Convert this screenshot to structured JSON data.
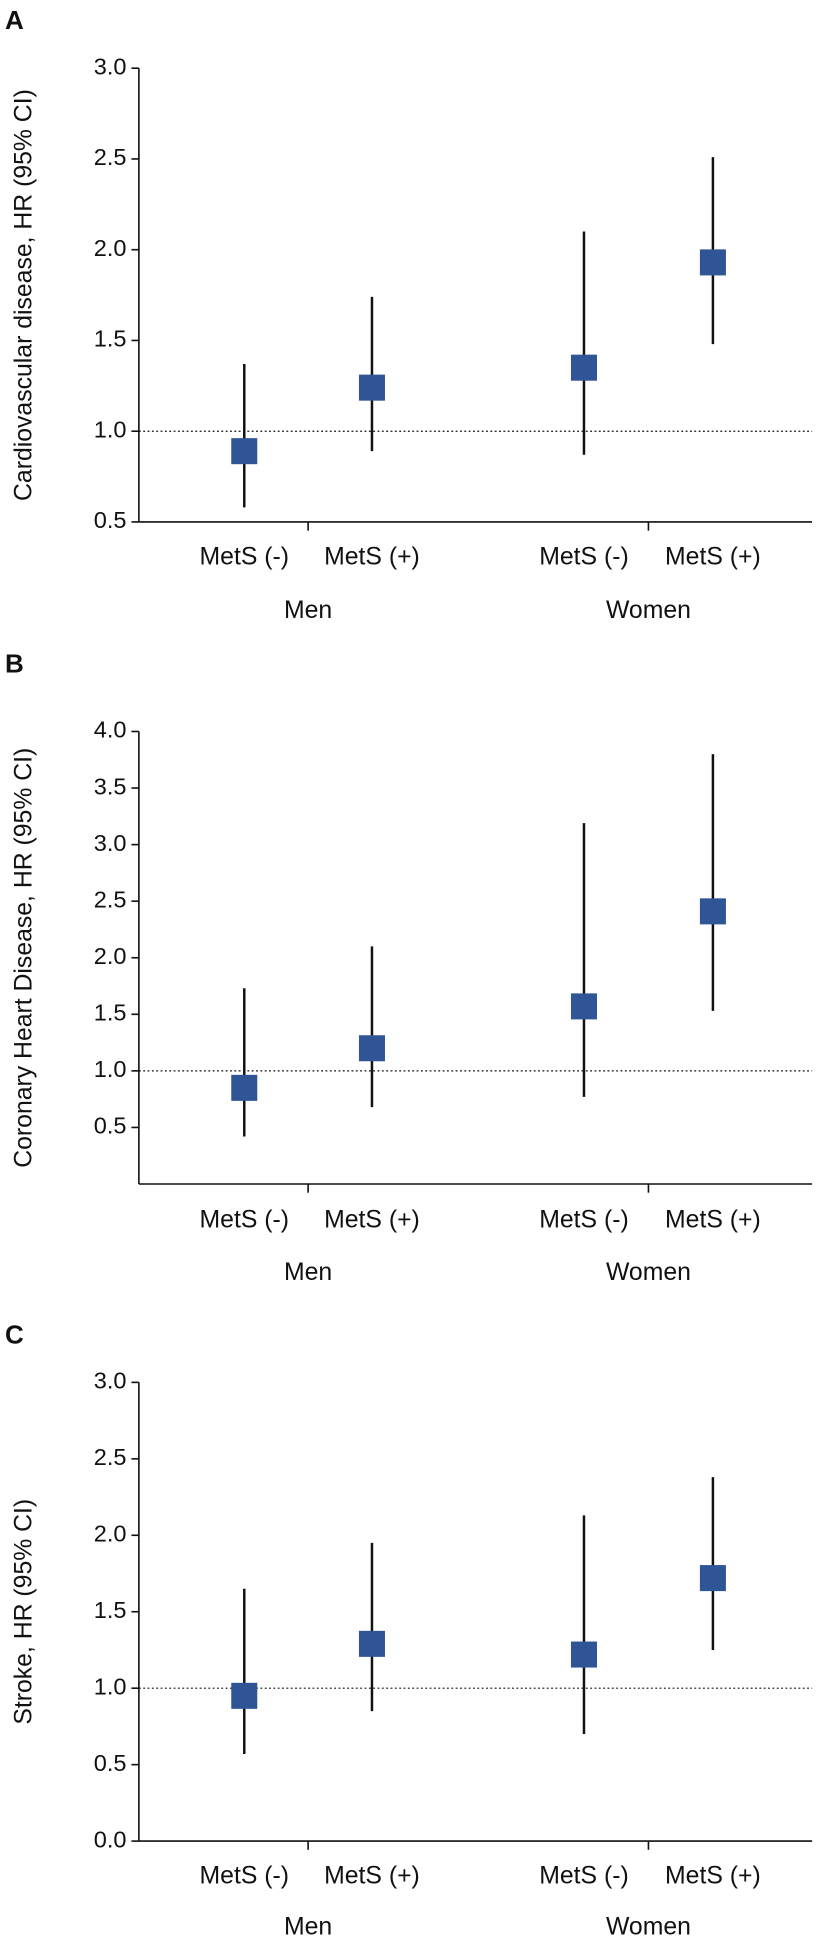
{
  "chart_data": [
    {
      "type": "errorbar",
      "panel_label": "A",
      "y_label": "Cardiovascular disease, HR (95% CI)",
      "categories": [
        "MetS (-)",
        "MetS (+)",
        "MetS (-)",
        "MetS (+)"
      ],
      "groups": [
        "Men",
        "Women"
      ],
      "values": [
        0.89,
        1.24,
        1.35,
        1.93
      ],
      "lower": [
        0.58,
        0.89,
        0.87,
        1.48
      ],
      "upper": [
        1.37,
        1.74,
        2.1,
        2.51
      ],
      "color": "#2f5597",
      "reference_line": 1,
      "ylim": [
        0.5,
        3.0
      ],
      "yticks": [
        0.5,
        {
          "value": 1,
          "label": "1.0"
        },
        1.5,
        {
          "value": 2,
          "label": "2.0"
        },
        2.5,
        {
          "value": 3,
          "label": "3.0"
        }
      ]
    },
    {
      "type": "errorbar",
      "panel_label": "B",
      "y_label": "Coronary Heart Disease, HR (95% CI)",
      "categories": [
        "MetS (-)",
        "MetS (+)",
        "MetS (-)",
        "MetS (+)"
      ],
      "groups": [
        "Men",
        "Women"
      ],
      "values": [
        0.85,
        1.2,
        1.57,
        2.41
      ],
      "lower": [
        0.42,
        0.68,
        0.77,
        1.53
      ],
      "upper": [
        1.73,
        2.1,
        3.19,
        3.8
      ],
      "color": "#2f5597",
      "reference_line": 1,
      "ylim": [
        0,
        4.0
      ],
      "yticks": [
        0.5,
        {
          "value": 1,
          "label": "1.0"
        },
        1.5,
        {
          "value": 2,
          "label": "2.0"
        },
        2.5,
        {
          "value": 3,
          "label": "3.0"
        },
        3.5,
        {
          "value": 4,
          "label": "4.0"
        }
      ]
    },
    {
      "type": "errorbar",
      "panel_label": "C",
      "y_label": "Stroke, HR (95% CI)",
      "categories": [
        "MetS (-)",
        "MetS (+)",
        "MetS (-)",
        "MetS (+)"
      ],
      "groups": [
        "Men",
        "Women"
      ],
      "values": [
        0.95,
        1.29,
        1.22,
        1.72
      ],
      "lower": [
        0.57,
        0.85,
        0.7,
        1.25
      ],
      "upper": [
        1.65,
        1.95,
        2.13,
        2.38
      ],
      "color": "#2f5597",
      "reference_line": 1,
      "ylim": [
        0,
        3.0
      ],
      "yticks": [
        {
          "value": 0,
          "label": "0.0"
        },
        0.5,
        {
          "value": 1,
          "label": "1.0"
        },
        1.5,
        {
          "value": 2,
          "label": "2.0"
        },
        2.5,
        {
          "value": 3,
          "label": "3.0"
        }
      ]
    }
  ]
}
